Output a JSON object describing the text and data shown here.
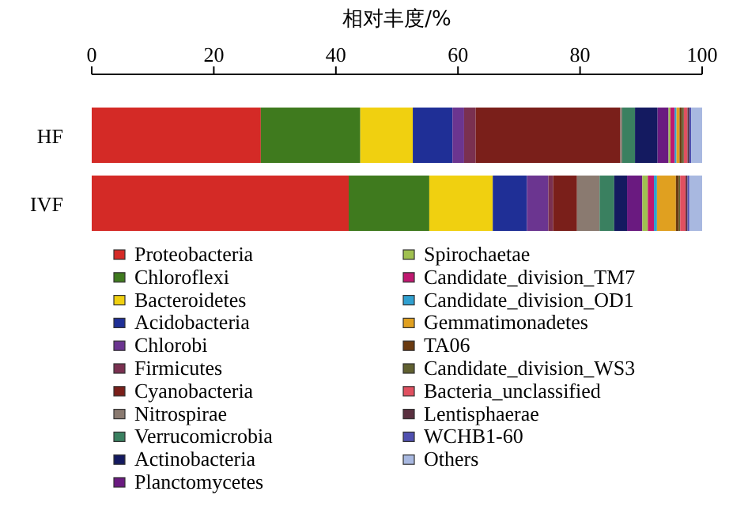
{
  "chart_data": {
    "type": "bar",
    "orientation": "horizontal",
    "stacked": true,
    "xlabel": "相对丰度/%",
    "categories": [
      "HF",
      "IVF"
    ],
    "xlim": [
      0,
      100
    ],
    "xticks": [
      0,
      20,
      40,
      60,
      80,
      100
    ],
    "legend": "bottom",
    "series": [
      {
        "name": "Proteobacteria",
        "color": "#d42a26",
        "values": [
          27.7,
          42.1
        ]
      },
      {
        "name": "Chloroflexi",
        "color": "#3f7a1e",
        "values": [
          16.3,
          13.2
        ]
      },
      {
        "name": "Bacteroidetes",
        "color": "#f0d010",
        "values": [
          8.6,
          10.4
        ]
      },
      {
        "name": "Acidobacteria",
        "color": "#1f2f96",
        "values": [
          6.5,
          5.6
        ]
      },
      {
        "name": "Chlorobi",
        "color": "#6b3590",
        "values": [
          1.9,
          3.5
        ]
      },
      {
        "name": "Firmicutes",
        "color": "#7a3050",
        "values": [
          1.9,
          0.8
        ]
      },
      {
        "name": "Cyanobacteria",
        "color": "#7a1f1a",
        "values": [
          23.7,
          3.9
        ]
      },
      {
        "name": "Nitrospirae",
        "color": "#8a7a70",
        "values": [
          0.3,
          3.7
        ]
      },
      {
        "name": "Verrucomicrobia",
        "color": "#3a8060",
        "values": [
          2.1,
          2.4
        ]
      },
      {
        "name": "Actinobacteria",
        "color": "#141a60",
        "values": [
          3.7,
          2.1
        ]
      },
      {
        "name": "Planctomycetes",
        "color": "#6a1a80",
        "values": [
          1.8,
          2.5
        ]
      },
      {
        "name": "Spirochaetae",
        "color": "#a0c050",
        "values": [
          0.3,
          0.9
        ]
      },
      {
        "name": "Candidate_division_TM7",
        "color": "#c01870",
        "values": [
          0.7,
          1.0
        ]
      },
      {
        "name": "Candidate_division_OD1",
        "color": "#30a0d0",
        "values": [
          0.3,
          0.5
        ]
      },
      {
        "name": "Gemmatimonadetes",
        "color": "#e0a020",
        "values": [
          0.5,
          3.1
        ]
      },
      {
        "name": "TA06",
        "color": "#6a3a10",
        "values": [
          0.4,
          0.5
        ]
      },
      {
        "name": "Candidate_division_WS3",
        "color": "#606030",
        "values": [
          0.3,
          0.2
        ]
      },
      {
        "name": "Bacteria_unclassified",
        "color": "#e05060",
        "values": [
          0.6,
          0.9
        ]
      },
      {
        "name": "Lentisphaerae",
        "color": "#5a3040",
        "values": [
          0.3,
          0.3
        ]
      },
      {
        "name": "WCHB1-60",
        "color": "#5050b0",
        "values": [
          0.3,
          0.3
        ]
      },
      {
        "name": "Others",
        "color": "#a8b8e0",
        "values": [
          1.8,
          2.1
        ]
      }
    ]
  }
}
